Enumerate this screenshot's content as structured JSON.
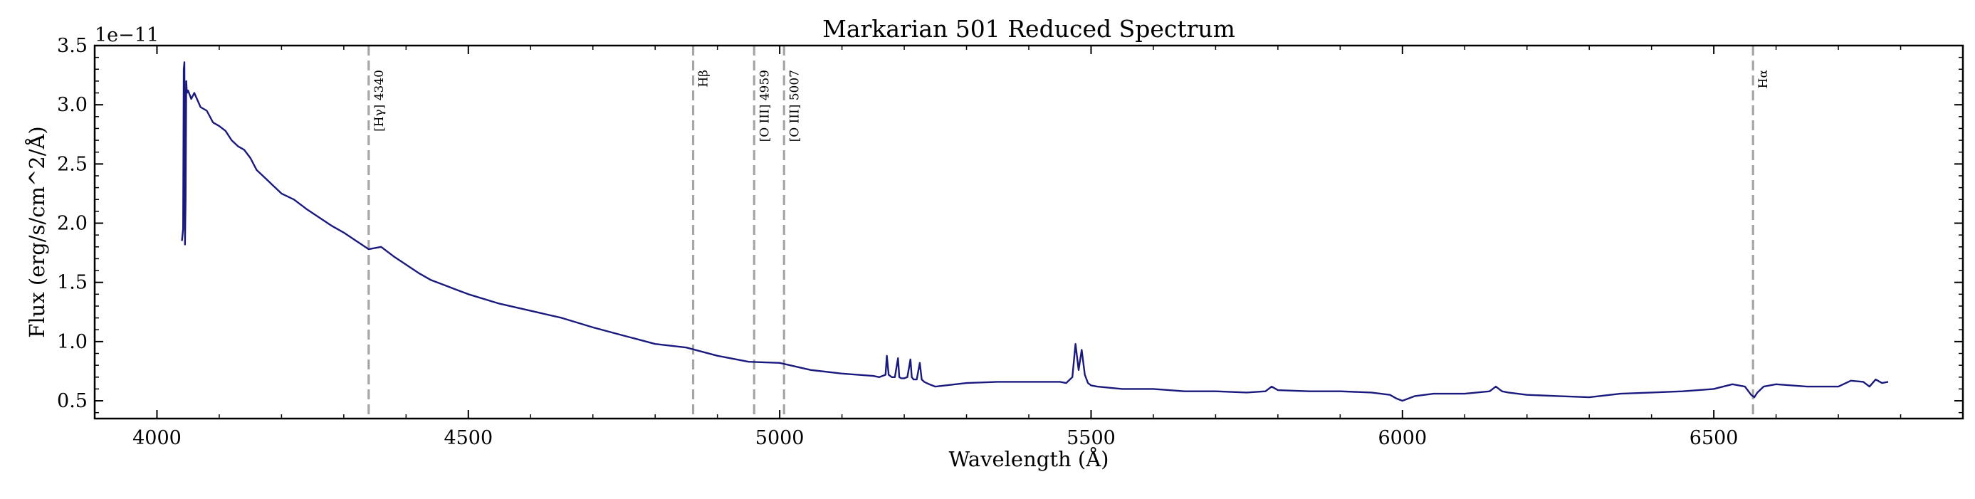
{
  "chart_data": {
    "type": "line",
    "title": "Markarian 501 Reduced Spectrum",
    "xlabel": "Wavelength (Å)",
    "ylabel": "Flux (erg/s/cm^2/Å)",
    "y_offset_label": "1e−11",
    "xlim": [
      3900,
      6900
    ],
    "ylim": [
      0.35,
      3.5
    ],
    "x_ticks": [
      4000,
      4500,
      5000,
      5500,
      6000,
      6500
    ],
    "x_tick_labels": [
      "4000",
      "4500",
      "5000",
      "5500",
      "6000",
      "6500"
    ],
    "y_ticks": [
      0.5,
      1.0,
      1.5,
      2.0,
      2.5,
      3.0,
      3.5
    ],
    "y_tick_labels": [
      "0.5",
      "1.0",
      "1.5",
      "2.0",
      "2.5",
      "3.0",
      "3.5"
    ],
    "grid": false,
    "line_color": "#1a1a7e",
    "reference_line_color": "#a6a6a6",
    "reference_lines": [
      {
        "x": 4340,
        "label": "[Hγ] 4340"
      },
      {
        "x": 4861,
        "label": "Hβ"
      },
      {
        "x": 4959,
        "label": "[O III] 4959"
      },
      {
        "x": 5007,
        "label": "[O III] 5007"
      },
      {
        "x": 6563,
        "label": "Hα"
      }
    ],
    "series": [
      {
        "x": [
          4040,
          4042,
          4043,
          4044,
          4045,
          4046,
          4047,
          4048,
          4050,
          4055,
          4060,
          4070,
          4080,
          4090,
          4100,
          4110,
          4120,
          4130,
          4140,
          4150,
          4160,
          4170,
          4180,
          4190,
          4200,
          4220,
          4240,
          4260,
          4280,
          4300,
          4320,
          4340,
          4360,
          4380,
          4400,
          4420,
          4440,
          4460,
          4480,
          4500,
          4550,
          4600,
          4650,
          4700,
          4750,
          4800,
          4850,
          4900,
          4950,
          5000,
          5050,
          5100,
          5150,
          5160,
          5170,
          5172,
          5175,
          5180,
          5185,
          5190,
          5192,
          5195,
          5200,
          5205,
          5210,
          5212,
          5215,
          5220,
          5225,
          5228,
          5232,
          5240,
          5250,
          5300,
          5350,
          5400,
          5450,
          5460,
          5470,
          5475,
          5480,
          5485,
          5490,
          5495,
          5500,
          5510,
          5550,
          5600,
          5650,
          5700,
          5750,
          5780,
          5790,
          5800,
          5850,
          5900,
          5950,
          5980,
          5990,
          6000,
          6020,
          6050,
          6100,
          6140,
          6150,
          6160,
          6170,
          6200,
          6250,
          6300,
          6350,
          6400,
          6450,
          6500,
          6530,
          6550,
          6560,
          6565,
          6570,
          6580,
          6600,
          6650,
          6700,
          6720,
          6740,
          6750,
          6760,
          6770,
          6780
        ],
        "y": [
          1.85,
          1.95,
          3.3,
          3.36,
          1.82,
          2.2,
          3.2,
          3.1,
          3.12,
          3.05,
          3.1,
          2.98,
          2.95,
          2.85,
          2.82,
          2.78,
          2.7,
          2.65,
          2.62,
          2.55,
          2.45,
          2.4,
          2.35,
          2.3,
          2.25,
          2.2,
          2.12,
          2.05,
          1.98,
          1.92,
          1.85,
          1.78,
          1.8,
          1.72,
          1.65,
          1.58,
          1.52,
          1.48,
          1.44,
          1.4,
          1.32,
          1.26,
          1.2,
          1.12,
          1.05,
          0.98,
          0.95,
          0.88,
          0.83,
          0.82,
          0.76,
          0.73,
          0.71,
          0.7,
          0.72,
          0.88,
          0.72,
          0.7,
          0.7,
          0.86,
          0.7,
          0.69,
          0.69,
          0.7,
          0.85,
          0.7,
          0.68,
          0.68,
          0.82,
          0.68,
          0.66,
          0.64,
          0.62,
          0.65,
          0.66,
          0.66,
          0.66,
          0.65,
          0.7,
          0.98,
          0.76,
          0.93,
          0.72,
          0.65,
          0.63,
          0.62,
          0.6,
          0.6,
          0.58,
          0.58,
          0.57,
          0.58,
          0.62,
          0.59,
          0.58,
          0.58,
          0.57,
          0.55,
          0.52,
          0.5,
          0.54,
          0.56,
          0.56,
          0.58,
          0.62,
          0.58,
          0.57,
          0.55,
          0.54,
          0.53,
          0.56,
          0.57,
          0.58,
          0.6,
          0.64,
          0.62,
          0.55,
          0.53,
          0.57,
          0.62,
          0.64,
          0.62,
          0.62,
          0.67,
          0.66,
          0.62,
          0.68,
          0.65,
          0.66
        ]
      }
    ]
  }
}
